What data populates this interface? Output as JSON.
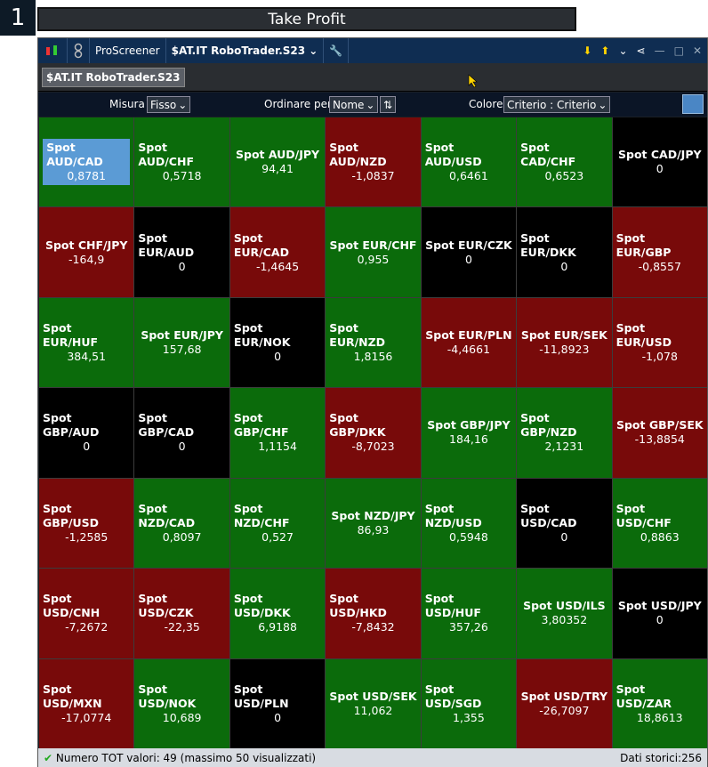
{
  "badge": "1",
  "title": "Take Profit",
  "toolbar": {
    "app": "ProScreener",
    "screener": "$AT.IT RoboTrader.S23"
  },
  "tab": "$AT.IT RoboTrader.S23",
  "controls": {
    "measure_label": "Misura",
    "measure": "Fisso",
    "sort_label": "Ordinare per",
    "sort": "Nome",
    "color_label": "Colore",
    "color": "Criterio : Criterio"
  },
  "tiles": [
    {
      "name": "Spot AUD/CAD",
      "value": "0,8781",
      "color": "#0b6b0b"
    },
    {
      "name": "Spot AUD/CHF",
      "value": "0,5718",
      "color": "#0b6b0b"
    },
    {
      "name": "Spot AUD/JPY",
      "value": "94,41",
      "color": "#0b6b0b"
    },
    {
      "name": "Spot AUD/NZD",
      "value": "-1,0837",
      "color": "#780a0a"
    },
    {
      "name": "Spot AUD/USD",
      "value": "0,6461",
      "color": "#0b6b0b"
    },
    {
      "name": "Spot CAD/CHF",
      "value": "0,6523",
      "color": "#0b6b0b"
    },
    {
      "name": "Spot CAD/JPY",
      "value": "0",
      "color": "#000000"
    },
    {
      "name": "Spot CHF/JPY",
      "value": "-164,9",
      "color": "#780a0a"
    },
    {
      "name": "Spot EUR/AUD",
      "value": "0",
      "color": "#000000"
    },
    {
      "name": "Spot EUR/CAD",
      "value": "-1,4645",
      "color": "#780a0a"
    },
    {
      "name": "Spot EUR/CHF",
      "value": "0,955",
      "color": "#0b6b0b"
    },
    {
      "name": "Spot EUR/CZK",
      "value": "0",
      "color": "#000000"
    },
    {
      "name": "Spot EUR/DKK",
      "value": "0",
      "color": "#000000"
    },
    {
      "name": "Spot EUR/GBP",
      "value": "-0,8557",
      "color": "#780a0a"
    },
    {
      "name": "Spot EUR/HUF",
      "value": "384,51",
      "color": "#0b6b0b"
    },
    {
      "name": "Spot EUR/JPY",
      "value": "157,68",
      "color": "#0b6b0b"
    },
    {
      "name": "Spot EUR/NOK",
      "value": "0",
      "color": "#000000"
    },
    {
      "name": "Spot EUR/NZD",
      "value": "1,8156",
      "color": "#0b6b0b"
    },
    {
      "name": "Spot EUR/PLN",
      "value": "-4,4661",
      "color": "#780a0a"
    },
    {
      "name": "Spot EUR/SEK",
      "value": "-11,8923",
      "color": "#780a0a"
    },
    {
      "name": "Spot EUR/USD",
      "value": "-1,078",
      "color": "#780a0a"
    },
    {
      "name": "Spot GBP/AUD",
      "value": "0",
      "color": "#000000"
    },
    {
      "name": "Spot GBP/CAD",
      "value": "0",
      "color": "#000000"
    },
    {
      "name": "Spot GBP/CHF",
      "value": "1,1154",
      "color": "#0b6b0b"
    },
    {
      "name": "Spot GBP/DKK",
      "value": "-8,7023",
      "color": "#780a0a"
    },
    {
      "name": "Spot GBP/JPY",
      "value": "184,16",
      "color": "#0b6b0b"
    },
    {
      "name": "Spot GBP/NZD",
      "value": "2,1231",
      "color": "#0b6b0b"
    },
    {
      "name": "Spot GBP/SEK",
      "value": "-13,8854",
      "color": "#780a0a"
    },
    {
      "name": "Spot GBP/USD",
      "value": "-1,2585",
      "color": "#780a0a"
    },
    {
      "name": "Spot NZD/CAD",
      "value": "0,8097",
      "color": "#0b6b0b"
    },
    {
      "name": "Spot NZD/CHF",
      "value": "0,527",
      "color": "#0b6b0b"
    },
    {
      "name": "Spot NZD/JPY",
      "value": "86,93",
      "color": "#0b6b0b"
    },
    {
      "name": "Spot NZD/USD",
      "value": "0,5948",
      "color": "#0b6b0b"
    },
    {
      "name": "Spot USD/CAD",
      "value": "0",
      "color": "#000000"
    },
    {
      "name": "Spot USD/CHF",
      "value": "0,8863",
      "color": "#0b6b0b"
    },
    {
      "name": "Spot USD/CNH",
      "value": "-7,2672",
      "color": "#780a0a"
    },
    {
      "name": "Spot USD/CZK",
      "value": "-22,35",
      "color": "#780a0a"
    },
    {
      "name": "Spot USD/DKK",
      "value": "6,9188",
      "color": "#0b6b0b"
    },
    {
      "name": "Spot USD/HKD",
      "value": "-7,8432",
      "color": "#780a0a"
    },
    {
      "name": "Spot USD/HUF",
      "value": "357,26",
      "color": "#0b6b0b"
    },
    {
      "name": "Spot USD/ILS",
      "value": "3,80352",
      "color": "#0b6b0b"
    },
    {
      "name": "Spot USD/JPY",
      "value": "0",
      "color": "#000000"
    },
    {
      "name": "Spot USD/MXN",
      "value": "-17,0774",
      "color": "#780a0a"
    },
    {
      "name": "Spot USD/NOK",
      "value": "10,689",
      "color": "#0b6b0b"
    },
    {
      "name": "Spot USD/PLN",
      "value": "0",
      "color": "#000000"
    },
    {
      "name": "Spot USD/SEK",
      "value": "11,062",
      "color": "#0b6b0b"
    },
    {
      "name": "Spot USD/SGD",
      "value": "1,355",
      "color": "#0b6b0b"
    },
    {
      "name": "Spot USD/TRY",
      "value": "-26,7097",
      "color": "#780a0a"
    },
    {
      "name": "Spot USD/ZAR",
      "value": "18,8613",
      "color": "#0b6b0b"
    }
  ],
  "status": {
    "count": "Numero TOT valori: 49 (massimo 50 visualizzati)",
    "history": "Dati storici:256"
  }
}
